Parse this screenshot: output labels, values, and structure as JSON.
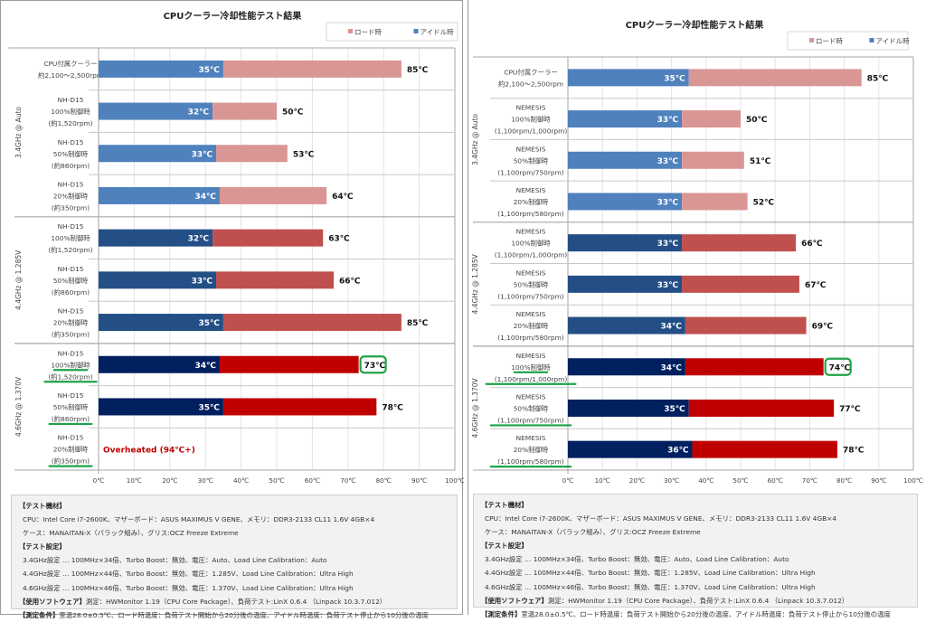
{
  "colors": {
    "idle_3_4": "#4f81bd",
    "load_3_4": "#da9694",
    "idle_4_4": "#234f86",
    "load_4_4": "#c0504d",
    "idle_4_6": "#002060",
    "load_4_6": "#c00000",
    "highlight": "#1fa34a",
    "overheated_text": "#c00000"
  },
  "chart_data": [
    {
      "type": "bar",
      "stacked": true,
      "orientation": "horizontal",
      "title": "CPUクーラー冷却性能テスト結果",
      "legend": [
        "ロード時",
        "アイドル時"
      ],
      "legend_position": "top-right",
      "xlim": [
        0,
        100
      ],
      "xticks": [
        "0℃",
        "10℃",
        "20℃",
        "30℃",
        "40℃",
        "50℃",
        "60℃",
        "70℃",
        "80℃",
        "90℃",
        "100℃"
      ],
      "grid": true,
      "groups": [
        {
          "label": "3.4GHz @ Auto",
          "scheme": "3_4",
          "rows": [
            {
              "lines": [
                "CPU付属クーラー",
                "約2,100～2,500rpm"
              ],
              "idle": 35,
              "load": 85,
              "idle_label": "35℃",
              "load_label": "85℃"
            },
            {
              "lines": [
                "NH-D15",
                "100%制御時",
                "(約1,520rpm)"
              ],
              "idle": 32,
              "load": 50,
              "idle_label": "32℃",
              "load_label": "50℃"
            },
            {
              "lines": [
                "NH-D15",
                "50%制御時",
                "(約860rpm)"
              ],
              "idle": 33,
              "load": 53,
              "idle_label": "33℃",
              "load_label": "53℃"
            },
            {
              "lines": [
                "NH-D15",
                "20%制御時",
                "(約350rpm)"
              ],
              "idle": 34,
              "load": 64,
              "idle_label": "34℃",
              "load_label": "64℃"
            }
          ]
        },
        {
          "label": "4.4GHz @ 1.285V",
          "scheme": "4_4",
          "rows": [
            {
              "lines": [
                "NH-D15",
                "100%制御時",
                "(約1,520rpm)"
              ],
              "idle": 32,
              "load": 63,
              "idle_label": "32℃",
              "load_label": "63℃"
            },
            {
              "lines": [
                "NH-D15",
                "50%制御時",
                "(約860rpm)"
              ],
              "idle": 33,
              "load": 66,
              "idle_label": "33℃",
              "load_label": "66℃"
            },
            {
              "lines": [
                "NH-D15",
                "20%制御時",
                "(約350rpm)"
              ],
              "idle": 35,
              "load": 85,
              "idle_label": "35℃",
              "load_label": "85℃"
            }
          ]
        },
        {
          "label": "4.6GHz @ 1.370V",
          "scheme": "4_6",
          "rows": [
            {
              "lines": [
                "NH-D15",
                "100%制御時",
                "(約1,520rpm)"
              ],
              "idle": 34,
              "load": 73,
              "idle_label": "34℃",
              "load_label": "73℃",
              "highlight": true,
              "underlined_lines": [
                1,
                2
              ]
            },
            {
              "lines": [
                "NH-D15",
                "50%制御時",
                "(約860rpm)"
              ],
              "idle": 35,
              "load": 78,
              "idle_label": "35℃",
              "load_label": "78℃",
              "underlined_lines": [
                2
              ]
            },
            {
              "lines": [
                "NH-D15",
                "20%制御時",
                "(約350rpm)"
              ],
              "overheated": "Overheated (94℃+)",
              "underlined_lines": [
                2
              ]
            }
          ]
        }
      ]
    },
    {
      "type": "bar",
      "stacked": true,
      "orientation": "horizontal",
      "title": "CPUクーラー冷却性能テスト結果",
      "legend": [
        "ロード時",
        "アイドル時"
      ],
      "legend_position": "top-right",
      "xlim": [
        0,
        100
      ],
      "xticks": [
        "0℃",
        "10℃",
        "20℃",
        "30℃",
        "40℃",
        "50℃",
        "60℃",
        "70℃",
        "80℃",
        "90℃",
        "100℃"
      ],
      "grid": true,
      "groups": [
        {
          "label": "3.4GHz @ Auto",
          "scheme": "3_4",
          "rows": [
            {
              "lines": [
                "CPU付属クーラー",
                "約2,100～2,500rpm"
              ],
              "idle": 35,
              "load": 85,
              "idle_label": "35℃",
              "load_label": "85℃"
            },
            {
              "lines": [
                "NEMESIS",
                "100%制御時",
                "(1,100rpm/1,000rpm)"
              ],
              "idle": 33,
              "load": 50,
              "idle_label": "33℃",
              "load_label": "50℃"
            },
            {
              "lines": [
                "NEMESIS",
                "50%制御時",
                "(1,100rpm/750rpm)"
              ],
              "idle": 33,
              "load": 51,
              "idle_label": "33℃",
              "load_label": "51℃"
            },
            {
              "lines": [
                "NEMESIS",
                "20%制御時",
                "(1,100rpm/580rpm)"
              ],
              "idle": 33,
              "load": 52,
              "idle_label": "33℃",
              "load_label": "52℃"
            }
          ]
        },
        {
          "label": "4.4GHz @ 1.285V",
          "scheme": "4_4",
          "rows": [
            {
              "lines": [
                "NEMESIS",
                "100%制御時",
                "(1,100rpm/1,000rpm)"
              ],
              "idle": 33,
              "load": 66,
              "idle_label": "33℃",
              "load_label": "66℃"
            },
            {
              "lines": [
                "NEMESIS",
                "50%制御時",
                "(1,100rpm/750rpm)"
              ],
              "idle": 33,
              "load": 67,
              "idle_label": "33℃",
              "load_label": "67℃"
            },
            {
              "lines": [
                "NEMESIS",
                "20%制御時",
                "(1,100rpm/580rpm)"
              ],
              "idle": 34,
              "load": 69,
              "idle_label": "34℃",
              "load_label": "69℃"
            }
          ]
        },
        {
          "label": "4.6GHz @ 1.370V",
          "scheme": "4_6",
          "rows": [
            {
              "lines": [
                "NEMESIS",
                "100%制御時",
                "(1,100rpm/1,000rpm)"
              ],
              "idle": 34,
              "load": 74,
              "idle_label": "34℃",
              "load_label": "74℃",
              "highlight": true,
              "underlined_lines": [
                1,
                2
              ]
            },
            {
              "lines": [
                "NEMESIS",
                "50%制御時",
                "(1,100rpm/750rpm)"
              ],
              "idle": 35,
              "load": 77,
              "idle_label": "35℃",
              "load_label": "77℃",
              "underlined_lines": [
                2
              ]
            },
            {
              "lines": [
                "NEMESIS",
                "20%制御時",
                "(1,100rpm/580rpm)"
              ],
              "idle": 36,
              "load": 78,
              "idle_label": "36℃",
              "load_label": "78℃",
              "underlined_lines": [
                2
              ]
            }
          ]
        }
      ]
    }
  ],
  "footer": {
    "equipment_heading": "【テスト機材】",
    "equipment_1": "CPU：Intel Core i7-2600K、マザーボード：ASUS MAXIMUS V GENE、メモリ：DDR3-2133 CL11 1.6V 4GB×4",
    "equipment_2": "ケース：MANAITAN-X（バラック組み）、グリス:OCZ Freeze Extreme",
    "settings_heading": "【テスト設定】",
    "setting_1": "3.4GHz設定 … 100MHz×34倍、Turbo Boost：無効、電圧：Auto、Load Line Calibration：Auto",
    "setting_2": "4.4GHz設定 … 100MHz×44倍、Turbo Boost：無効、電圧：1.285V、Load Line Calibration：Ultra High",
    "setting_3": "4.6GHz設定 … 100MHz×46倍、Turbo Boost：無効、電圧：1.370V、Load Line Calibration：Ultra High",
    "software_heading": "【使用ソフトウェア】",
    "software": "測定：HWMonitor 1.19（CPU Core Package）、負荷テスト:LinX 0.6.4 （Linpack 10.3.7.012）",
    "conditions_heading": "【測定条件】",
    "conditions": "室温28.0±0.5℃、ロード時温度：負荷テスト開始から20分後の温度、アイドル時温度：負荷テスト停止から10分後の温度"
  }
}
